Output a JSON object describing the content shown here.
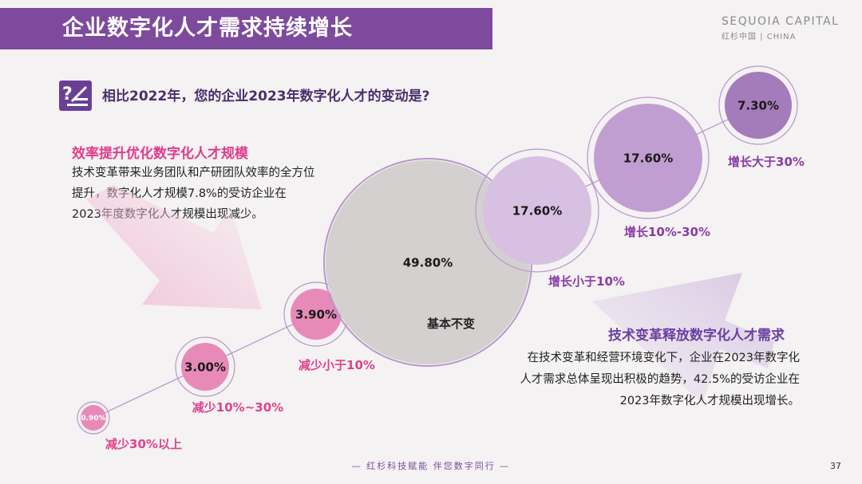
{
  "header": {
    "title": "企业数字化人才需求持续增长",
    "brand_name": "SEQUOIA CAPITAL",
    "brand_sub": "红杉中国 | CHINA"
  },
  "question": "相比2022年，您的企业2023年数字化人才的变动是?",
  "left_panel": {
    "heading": "效率提升优化数字化人才规模",
    "body": "技术变革带来业务团队和产研团队效率的全方位提升，数字化人才规模7.8%的受访企业在2023年度数字化人才规模出现减少。"
  },
  "right_panel": {
    "heading": "技术变革释放数字化人才需求",
    "body": "在技术变革和经营环境变化下，企业在2023年数字化人才需求总体呈现出积极的趋势，42.5%的受访企业在2023年数字化人才规模出现增长。"
  },
  "chart_data": {
    "type": "bubble",
    "categories": [
      "减少30%以上",
      "减少10%~30%",
      "减少小于10%",
      "基本不变",
      "增长小于10%",
      "增长10%-30%",
      "增长大于30%"
    ],
    "values": [
      0.9,
      3.0,
      3.9,
      49.8,
      17.6,
      17.6,
      7.3
    ],
    "value_labels": [
      "0.90%",
      "3.00%",
      "3.90%",
      "49.80%",
      "17.60%",
      "17.60%",
      "7.30%"
    ],
    "unit": "%",
    "colors": {
      "decrease": "#e88ab8",
      "neutral": "#d4d0cf",
      "increase_light": "#d8c0e2",
      "increase_mid": "#c19ed2",
      "increase_strong": "#a47cbb",
      "ring": "#b895cc",
      "decrease_label": "#e0418c",
      "increase_label": "#8b3aa8"
    }
  },
  "footer": {
    "slogan": "— 红杉科技赋能     伴您数字同行 —",
    "page": "37"
  }
}
